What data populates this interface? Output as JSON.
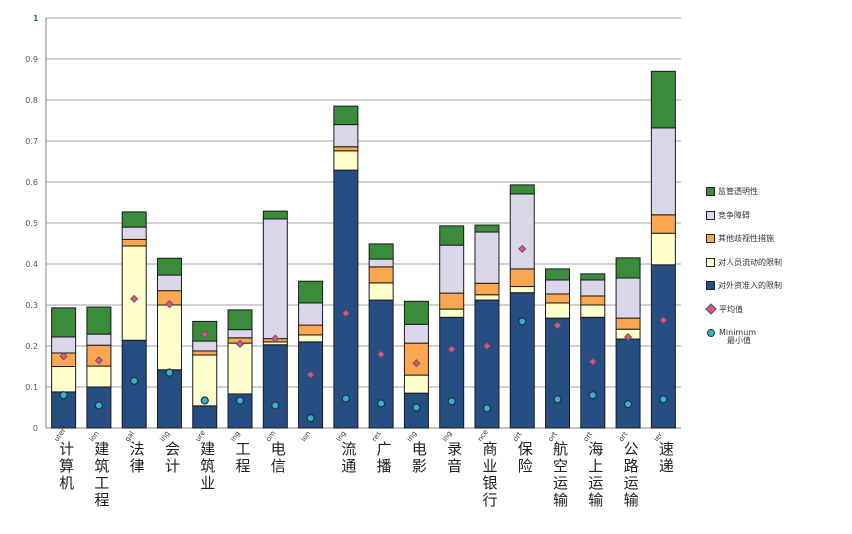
{
  "chart_data": {
    "type": "bar",
    "stacked": true,
    "title": "",
    "xlabel": "",
    "ylabel": "",
    "ylim": [
      0,
      1
    ],
    "yticks": [
      "0",
      "0.1",
      "0.2",
      "0.3",
      "0.4",
      "0.5",
      "0.6",
      "0.7",
      "0.8",
      "0.9",
      "1"
    ],
    "grid": true,
    "legend_position": "right",
    "categories_en_fragment": [
      "uter",
      "ion",
      "gal",
      "ing",
      "ure",
      "ing",
      "om",
      "ion",
      "ing",
      "res",
      "ing",
      "ing",
      "nce",
      "ort",
      "ort",
      "ort",
      "ort",
      "ier"
    ],
    "categories_zh": [
      "计算机",
      "建筑工程",
      "法律",
      "会计",
      "建筑业",
      "工程",
      "电信",
      "",
      "流通",
      "广播",
      "电影",
      "录音",
      "商业银行",
      "保险",
      "航空运输",
      "海上运输",
      "公路运输",
      "速递"
    ],
    "series": [
      {
        "name": "对外资准入的限制",
        "color": "#264e82",
        "values": [
          0.088,
          0.1,
          0.214,
          0.142,
          0.054,
          0.083,
          0.203,
          0.21,
          0.629,
          0.312,
          0.085,
          0.27,
          0.312,
          0.33,
          0.268,
          0.27,
          0.217,
          0.398
        ]
      },
      {
        "name": "对人员流动的限制",
        "color": "#ffffcc",
        "values": [
          0.062,
          0.051,
          0.23,
          0.158,
          0.124,
          0.124,
          0.007,
          0.017,
          0.047,
          0.042,
          0.044,
          0.02,
          0.013,
          0.015,
          0.037,
          0.03,
          0.024,
          0.077
        ]
      },
      {
        "name": "其他歧视性措施",
        "color": "#fba650",
        "values": [
          0.033,
          0.051,
          0.016,
          0.035,
          0.01,
          0.013,
          0.008,
          0.024,
          0.01,
          0.039,
          0.078,
          0.039,
          0.028,
          0.043,
          0.022,
          0.022,
          0.027,
          0.045
        ]
      },
      {
        "name": "竞争障碍",
        "color": "#dcd6ea",
        "values": [
          0.039,
          0.027,
          0.03,
          0.038,
          0.024,
          0.02,
          0.292,
          0.054,
          0.054,
          0.019,
          0.046,
          0.117,
          0.125,
          0.183,
          0.034,
          0.039,
          0.098,
          0.212
        ]
      },
      {
        "name": "监管透明性",
        "color": "#3a8c3a",
        "values": [
          0.071,
          0.066,
          0.037,
          0.041,
          0.048,
          0.048,
          0.019,
          0.053,
          0.045,
          0.037,
          0.056,
          0.047,
          0.017,
          0.022,
          0.027,
          0.015,
          0.049,
          0.138
        ]
      }
    ],
    "markers": [
      {
        "name": "平均值",
        "shape": "diamond",
        "color": "#e0508a",
        "values": [
          0.175,
          0.165,
          0.315,
          0.302,
          0.228,
          0.205,
          0.218,
          0.13,
          0.28,
          0.18,
          0.158,
          0.192,
          0.2,
          0.437,
          0.25,
          0.162,
          0.222,
          0.263
        ]
      },
      {
        "name": "Minimum 最小值",
        "shape": "circle",
        "color": "#3ab0c8",
        "values": [
          0.08,
          0.055,
          0.115,
          0.135,
          0.067,
          0.067,
          0.055,
          0.024,
          0.072,
          0.06,
          0.05,
          0.065,
          0.048,
          0.26,
          0.07,
          0.08,
          0.058,
          0.07
        ]
      }
    ]
  },
  "legend": {
    "items": [
      {
        "label": "监管透明性",
        "kind": "swatch",
        "color": "#3a8c3a"
      },
      {
        "label": "竞争障碍",
        "kind": "swatch",
        "color": "#dcd6ea"
      },
      {
        "label": "其他歧视性措施",
        "kind": "swatch",
        "color": "#fba650"
      },
      {
        "label": "对人员流动的限制",
        "kind": "swatch",
        "color": "#ffffcc"
      },
      {
        "label": "对外资准入的限制",
        "kind": "swatch",
        "color": "#264e82"
      },
      {
        "label": "平均值",
        "kind": "avg"
      }
    ],
    "min_label_en": "Minimum",
    "min_label_zh": "最小值"
  }
}
